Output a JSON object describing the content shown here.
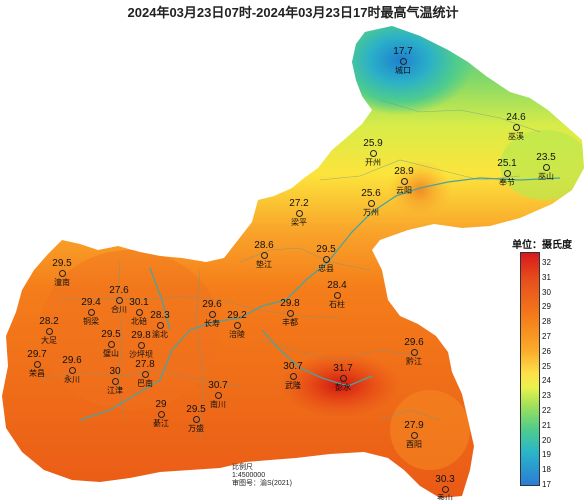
{
  "title": "2024年03月23日07时-2024年03月23日17时最高气温统计",
  "legend": {
    "title": "单位：摄氏度",
    "ticks": [
      "32",
      "31",
      "30",
      "29",
      "28",
      "27",
      "26",
      "25",
      "24",
      "23",
      "22",
      "21",
      "20",
      "19",
      "18",
      "17"
    ]
  },
  "scale_note": [
    "比例尺",
    "1:4500000",
    "审图号：渝S(2021)"
  ],
  "colors": {
    "hot": "#d7191c",
    "warm": "#f57d1a",
    "mild": "#fde04a",
    "cool": "#4fcc8c",
    "cold": "#2b7cd6",
    "river": "#4aa3a0"
  },
  "stations": [
    {
      "name": "城口",
      "value": "17.7"
    },
    {
      "name": "巫溪",
      "value": "24.6"
    },
    {
      "name": "开州",
      "value": "25.9"
    },
    {
      "name": "云阳",
      "value": "28.9"
    },
    {
      "name": "奉节",
      "value": "25.1"
    },
    {
      "name": "巫山",
      "value": "23.5"
    },
    {
      "name": "梁平",
      "value": "27.2"
    },
    {
      "name": "万州",
      "value": "25.6"
    },
    {
      "name": "垫江",
      "value": "28.6"
    },
    {
      "name": "忠县",
      "value": "29.5"
    },
    {
      "name": "石柱",
      "value": "28.4"
    },
    {
      "name": "潼南",
      "value": "29.5"
    },
    {
      "name": "合川",
      "value": "27.6"
    },
    {
      "name": "铜梁",
      "value": "29.4"
    },
    {
      "name": "北碚",
      "value": "30.1"
    },
    {
      "name": "渝北",
      "value": "28.3"
    },
    {
      "name": "长寿",
      "value": "29.6"
    },
    {
      "name": "丰都",
      "value": "29.8"
    },
    {
      "name": "涪陵",
      "value": "29.2"
    },
    {
      "name": "大足",
      "value": "28.2"
    },
    {
      "name": "璧山",
      "value": "29.5"
    },
    {
      "name": "沙坪坝",
      "value": "29.8"
    },
    {
      "name": "荣昌",
      "value": "29.7"
    },
    {
      "name": "永川",
      "value": "29.6"
    },
    {
      "name": "江津",
      "value": "30"
    },
    {
      "name": "巴南",
      "value": "27.8"
    },
    {
      "name": "南川",
      "value": "30.7"
    },
    {
      "name": "武隆",
      "value": "30.7"
    },
    {
      "name": "彭水",
      "value": "31.7"
    },
    {
      "name": "黔江",
      "value": "29.6"
    },
    {
      "name": "綦江",
      "value": "29"
    },
    {
      "name": "万盛",
      "value": "29.5"
    },
    {
      "name": "酉阳",
      "value": "27.9"
    },
    {
      "name": "秀山",
      "value": "30.3"
    }
  ]
}
